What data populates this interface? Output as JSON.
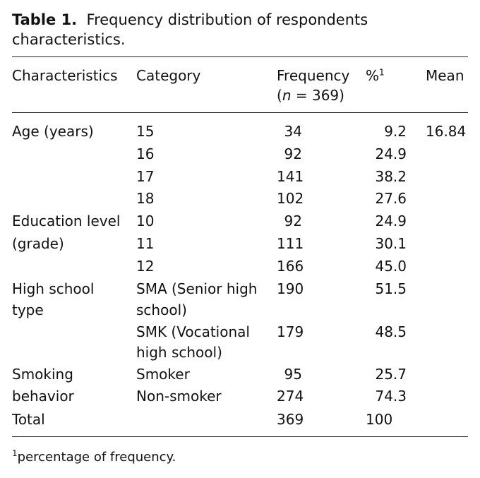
{
  "caption": {
    "label": "Table 1.",
    "text": "Frequency distribution of respondents characteristics."
  },
  "headers": {
    "characteristics": "Characteristics",
    "category": "Category",
    "frequency": "Frequency",
    "frequency_n_var": "n",
    "frequency_n_eq": " = 369)",
    "frequency_paren": "(",
    "percent": "%",
    "percent_sup": "1",
    "mean": "Mean"
  },
  "groups": {
    "age": {
      "label": "Age (years)",
      "mean": "16.84"
    },
    "education": {
      "label_line1": "Education level",
      "label_line2": "(grade)"
    },
    "school": {
      "label_line1": "High school",
      "label_line2": "type"
    },
    "smoking": {
      "label_line1": "Smoking",
      "label_line2": "behavior"
    },
    "total": {
      "label": "Total",
      "frequency": "369",
      "percent": "100"
    }
  },
  "rows": [
    {
      "category": "15",
      "frequency": "34",
      "percent": "9.2"
    },
    {
      "category": "16",
      "frequency": "92",
      "percent": "24.9"
    },
    {
      "category": "17",
      "frequency": "141",
      "percent": "38.2"
    },
    {
      "category": "18",
      "frequency": "102",
      "percent": "27.6"
    },
    {
      "category": "10",
      "frequency": "92",
      "percent": "24.9"
    },
    {
      "category": "11",
      "frequency": "111",
      "percent": "30.1"
    },
    {
      "category": "12",
      "frequency": "166",
      "percent": "45.0"
    },
    {
      "category_line1": "SMA (Senior high",
      "category_line2": "school)",
      "frequency": "190",
      "percent": "51.5"
    },
    {
      "category_line1": "SMK (Vocational",
      "category_line2": "high school)",
      "frequency": "179",
      "percent": "48.5"
    },
    {
      "category": "Smoker",
      "frequency": "95",
      "percent": "25.7"
    },
    {
      "category": "Non-smoker",
      "frequency": "274",
      "percent": "74.3"
    }
  ],
  "footnote": {
    "sup": "1",
    "text": "percentage of frequency."
  }
}
